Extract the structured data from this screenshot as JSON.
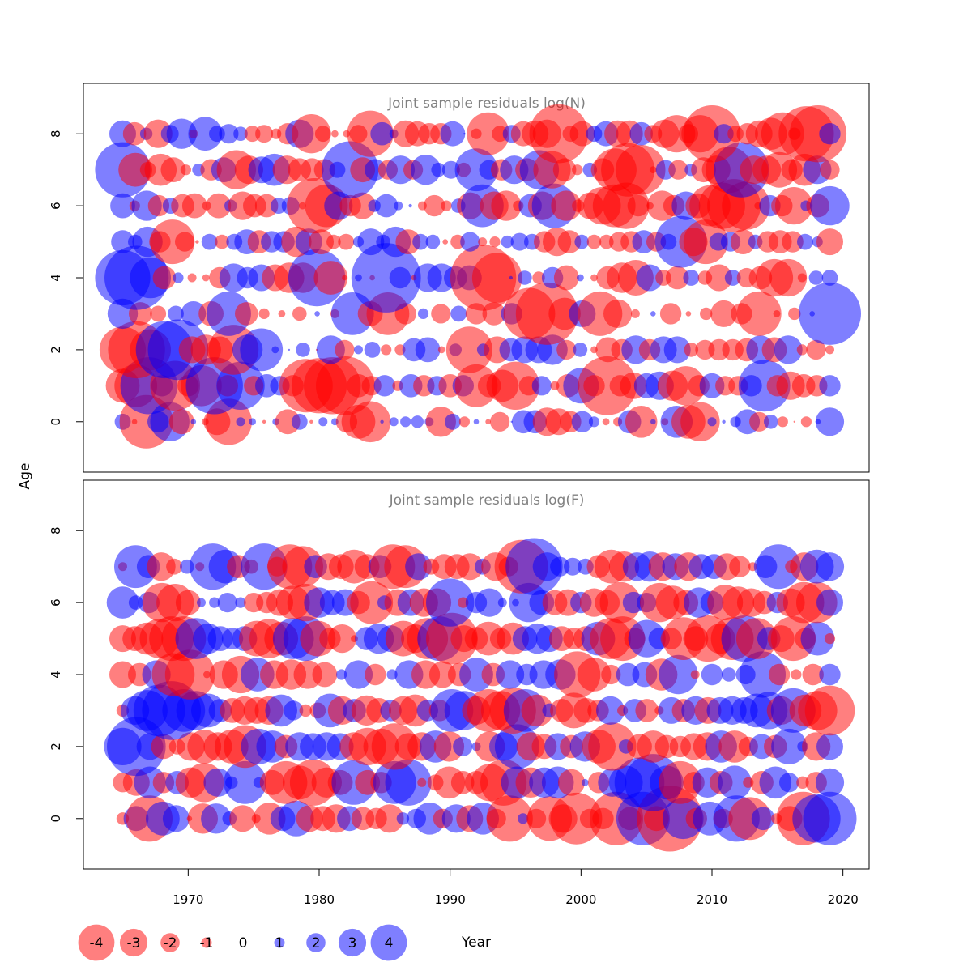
{
  "figure": {
    "xlabel": "Year",
    "ylabel": "Age",
    "legend": {
      "values": [
        "-4",
        "-3",
        "-2",
        "-1",
        "0",
        "1",
        "2",
        "3",
        "4"
      ],
      "placement": "bottom-left"
    },
    "colors": {
      "negative": "#ff0000",
      "positive": "#0000ff",
      "panel_title": "#808080"
    }
  },
  "chart_data": [
    {
      "type": "scatter",
      "title": "Joint sample residuals log(N)",
      "xlim": [
        1962,
        2022
      ],
      "ylim": [
        -1.4,
        9.4
      ],
      "x_ticks": [
        "1970",
        "1980",
        "1990",
        "2000",
        "2010",
        "2020"
      ],
      "y_ticks": [
        "0",
        "2",
        "4",
        "6",
        "8"
      ],
      "years": [
        1965,
        2019
      ],
      "ages": [
        0,
        1,
        2,
        3,
        4,
        5,
        6,
        7,
        8
      ],
      "residuals": {
        "0": [
          0.9,
          -0.3,
          -3.0,
          1.2,
          2.2,
          -1.4,
          0.3,
          -0.4,
          -1.5,
          -2.6,
          0.5,
          0.4,
          -0.2,
          0.4,
          -1.4,
          0.9,
          -0.2,
          0.5,
          0.4,
          -1.2,
          -1.9,
          -2.3,
          0.2,
          0.5,
          0.6,
          0.7,
          0.5,
          -1.7,
          0.9,
          -0.6,
          0.3,
          -0.3,
          -1.1,
          0.1,
          1.3,
          1.3,
          -1.6,
          -1.5,
          -1.2,
          1.2,
          0.6,
          -0.4,
          -0.5,
          1.3,
          -1.8,
          0.3,
          -0.4,
          1.8,
          -1.9,
          -2.2,
          0.5,
          0.2,
          0.6,
          1.4,
          -1.1,
          0.8,
          -0.6,
          -0.1,
          -0.6,
          0.3,
          1.6
        ],
        "1": [
          -1.9,
          -2.4,
          3.2,
          1.2,
          -2.8,
          -1.2,
          -2.3,
          3.2,
          -1.2,
          2.7,
          -1.1,
          1.3,
          1.1,
          -1.2,
          -3.0,
          -3.1,
          -3.2,
          -3.3,
          -1.3,
          -1.1,
          1.2,
          -0.6,
          1.3,
          -1.2,
          1.1,
          -1.3,
          1.2,
          -2.4,
          -1.3,
          -1.8,
          -2.7,
          -1.1,
          1.1,
          -0.5,
          -1.3,
          2.0,
          -1.2,
          -3.3,
          -1.2,
          -1.5,
          1.4,
          1.6,
          -1.7,
          -2.2,
          -1.2,
          1.4,
          -1.1,
          -1.1,
          1.2,
          2.9,
          -1.2,
          -1.6,
          -1.3,
          -1.2,
          1.2
        ],
        "2": [
          -2.6,
          -3.2,
          -2.3,
          3.2,
          3.4,
          -1.5,
          -1.7,
          -1.5,
          -2.8,
          1.7,
          2.4,
          0.4,
          0.1,
          0.8,
          -0.1,
          1.6,
          -1.1,
          0.5,
          0.9,
          -0.6,
          -0.6,
          1.3,
          1.4,
          -0.4,
          0.7,
          -2.6,
          0.7,
          -1.5,
          1.3,
          1.5,
          1.5,
          1.7,
          -1.1,
          0.8,
          -0.4,
          -1.4,
          -1.2,
          1.6,
          -1.2,
          1.5,
          1.5,
          -0.8,
          -1.1,
          -1.2,
          -1.2,
          -1.3,
          1.6,
          -1.4,
          1.6,
          -0.6,
          -1.1,
          -0.5
        ],
        "3": [
          1.7,
          -1.3,
          -0.9,
          0.9,
          1.4,
          -1.4,
          2.5,
          -1.3,
          -0.6,
          -0.4,
          -0.8,
          0.3,
          -0.5,
          2.4,
          -1.4,
          -2.4,
          -1.2,
          0.6,
          -1.1,
          0.9,
          -1.2,
          -1.3,
          1.2,
          -2.9,
          -3.5,
          -1.8,
          1.5,
          -2.5,
          -1.6,
          -0.5,
          0.3,
          -1.2,
          -0.3,
          -0.7,
          -1.5,
          -1.2,
          -2.5,
          -0.4,
          -0.7,
          0.3,
          3.5
        ],
        "4": [
          3.1,
          3.6,
          2.3,
          -1.3,
          0.6,
          -0.5,
          -0.4,
          -1.2,
          1.6,
          1.2,
          1.5,
          -1.5,
          -1.7,
          -1.7,
          3.2,
          -1.9,
          -0.3,
          0.4,
          -0.3,
          3.9,
          1.2,
          -0.3,
          1.6,
          1.6,
          1.3,
          1.4,
          -3.7,
          -2.8,
          0.2,
          0.8,
          -0.7,
          1.2,
          -1.4,
          0.4,
          -0.4,
          -1.3,
          -1.7,
          -2.0,
          1.5,
          -0.9,
          -1.3,
          0.9,
          -0.8,
          -1.5,
          0.9,
          -1.1,
          -1.3,
          -2.1,
          -2.1,
          -0.5,
          0.8,
          0.9
        ],
        "5": [
          1.3,
          0.8,
          1.7,
          -1.2,
          -2.5,
          -1.1,
          -0.2,
          0.9,
          -0.8,
          0.9,
          1.4,
          -1.3,
          1.2,
          1.2,
          -1.7,
          1.5,
          -1.4,
          -0.8,
          -0.9,
          0.6,
          1.5,
          0.8,
          1.7,
          -1.4,
          0.9,
          0.8,
          -0.3,
          -0.8,
          1.1,
          -0.5,
          -0.6,
          0.7,
          1.0,
          0.9,
          -1.2,
          -1.6,
          -1.3,
          0.8,
          -0.8,
          -0.8,
          -1.1,
          -1.2,
          1.3,
          -1.1,
          0.9,
          2.9,
          -1.6,
          -2.5,
          1.0,
          1.1,
          -1.4,
          0.8,
          -1.2,
          -1.3,
          -1.2,
          0.9,
          0.6,
          -1.5
        ],
        "6": [
          1.4,
          -0.6,
          1.7,
          -1.2,
          0.9,
          -1.3,
          -1.4,
          -0.5,
          -1.4,
          0.7,
          -1.6,
          -1.3,
          -1.3,
          0.9,
          1.0,
          -0.4,
          -3.1,
          -2.4,
          1.6,
          -1.2,
          -1.5,
          0.7,
          1.3,
          0.5,
          0.2,
          -0.5,
          -1.2,
          -0.6,
          0.8,
          -1.5,
          2.4,
          -1.6,
          -1.7,
          -0.6,
          1.3,
          -1.6,
          2.5,
          -1.7,
          -0.7,
          -1.5,
          -2.1,
          -2.4,
          -2.6,
          -1.2,
          -0.4,
          -1.7,
          -1.2,
          1.6,
          -1.4,
          -2.3,
          -2.6,
          -3.0,
          -2.7,
          -0.4,
          1.2,
          -1.2,
          -2.1,
          0.6,
          -1.3,
          2.2
        ],
        "7": [
          3.1,
          -1.9,
          -0.9,
          -1.8,
          -1.4,
          -0.6,
          0.7,
          -1.2,
          1.4,
          -2.2,
          -1.6,
          1.5,
          1.8,
          -1.6,
          -1.3,
          -1.3,
          -1.2,
          0.9,
          3.2,
          -1.4,
          1.2,
          -1.1,
          1.6,
          -1.1,
          1.7,
          0.8,
          1.0,
          -0.8,
          2.4,
          1.1,
          -1.2,
          1.6,
          -1.3,
          2.2,
          -2.1,
          -1.3,
          -0.6,
          0.8,
          -1.3,
          -2.4,
          -3.0,
          -2.8,
          -0.4,
          1.1,
          -1.1,
          0.7,
          -1.4,
          -1.6,
          -2.6,
          3.1,
          -1.6,
          -1.6,
          -2.0,
          -1.2,
          -1.8,
          1.6,
          -1.1
        ],
        "8": [
          1.5,
          -1.3,
          0.7,
          -1.6,
          1.0,
          1.7,
          -0.5,
          1.9,
          0.9,
          1.1,
          0.8,
          -0.9,
          -1.0,
          -0.6,
          -1.2,
          1.6,
          -2.2,
          -0.9,
          -0.4,
          -0.4,
          -1.0,
          -2.6,
          1.3,
          0.5,
          -1.5,
          -1.4,
          -1.2,
          -1.2,
          1.4,
          0.1,
          -0.6,
          -2.4,
          -0.9,
          1.0,
          -1.4,
          -1.5,
          -1.6,
          -3.3,
          -0.9,
          -1.4,
          0.9,
          1.4,
          -1.5,
          -1.5,
          1.3,
          -1.0,
          -1.6,
          -2.1,
          -1.1,
          -2.1,
          -3.2,
          1.1,
          -0.9,
          -1.2,
          -1.5,
          -1.8,
          -2.4,
          -0.7,
          -3.1,
          -3.2,
          1.2
        ]
      }
    },
    {
      "type": "scatter",
      "title": "Joint sample residuals log(F)",
      "xlim": [
        1962,
        2022
      ],
      "ylim": [
        -1.4,
        9.4
      ],
      "x_ticks": [
        "1970",
        "1980",
        "1990",
        "2000",
        "2010",
        "2020"
      ],
      "y_ticks": [
        "0",
        "2",
        "4",
        "6",
        "8"
      ],
      "years": [
        1965,
        2019
      ],
      "ages": [
        0,
        1,
        2,
        3,
        4,
        5,
        6,
        7
      ],
      "residuals": {
        "0": [
          -0.7,
          1.4,
          -2.6,
          1.9,
          1.5,
          -0.3,
          -1.7,
          1.7,
          0.8,
          -1.5,
          -0.5,
          -1.8,
          1.4,
          2.0,
          -1.5,
          -1.4,
          -1.6,
          1.4,
          -1.3,
          -1.2,
          -1.6,
          0.7,
          1.1,
          1.8,
          -1.1,
          1.6,
          -1.5,
          1.8,
          -1.1,
          -2.6,
          0.6,
          -1.1,
          -2.5,
          -1.6,
          -2.9,
          -1.1,
          -1.2,
          -3.0,
          -1.3,
          3.0,
          -1.4,
          -3.7,
          2.3,
          -1.2,
          1.9,
          -1.1,
          2.6,
          -2.4,
          1.3,
          -0.6,
          -1.4,
          -3.0,
          2.7,
          3.0
        ],
        "1": [
          -1.1,
          -1.5,
          1.8,
          -1.2,
          1.3,
          -1.7,
          -2.2,
          1.6,
          0.7,
          2.4,
          0.6,
          -1.4,
          -2.4,
          -1.9,
          -2.6,
          -1.7,
          -1.4,
          2.5,
          -1.4,
          -1.2,
          2.4,
          2.6,
          -0.5,
          -0.9,
          -1.8,
          -1.3,
          -1.3,
          -2.1,
          -2.6,
          1.8,
          -1.7,
          1.7,
          1.8,
          -1.5,
          0.4,
          -1.2,
          1.6,
          1.9,
          2.8,
          3.2,
          1.9,
          -2.4,
          -1.2,
          1.7,
          -1.3,
          1.9,
          -0.6,
          -1.3,
          1.8,
          1.1,
          -0.7,
          -1.2,
          1.6
        ],
        "2": [
          2.1,
          3.3,
          1.5,
          -1.4,
          -0.9,
          -1.6,
          -1.9,
          -1.6,
          -1.9,
          -2.4,
          2.0,
          1.8,
          -1.3,
          1.6,
          1.5,
          1.6,
          1.5,
          -1.6,
          -2.1,
          -2.0,
          -2.6,
          -1.5,
          -1.6,
          1.8,
          -1.7,
          1.1,
          0.5,
          -1.7,
          1.6,
          2.5,
          -1.6,
          -1.4,
          1.5,
          -1.3,
          1.7,
          -1.9,
          -2.7,
          0.8,
          -1.4,
          -1.8,
          -1.3,
          -1.2,
          -1.5,
          -1.6,
          1.8,
          -1.8,
          -1.1,
          1.4,
          -1.3,
          2.0,
          0.6,
          -1.6,
          1.5
        ],
        "3": [
          -0.7,
          1.6,
          2.3,
          2.9,
          3.3,
          2.4,
          2.2,
          1.9,
          1.3,
          -1.4,
          -1.6,
          -1.5,
          -1.6,
          1.8,
          1.1,
          -0.7,
          -0.9,
          1.9,
          -1.6,
          1.3,
          -1.7,
          -1.4,
          1.2,
          -1.6,
          -1.8,
          1.2,
          -1.2,
          2.4,
          2.2,
          -1.6,
          -2.4,
          -2.2,
          -2.6,
          2.4,
          -1.8,
          0.8,
          -1.3,
          -2.0,
          -1.4,
          -1.2,
          1.6,
          -0.6,
          1.3,
          -1.3,
          -0.5,
          1.5,
          -1.3,
          1.6,
          -1.5,
          1.5,
          1.6,
          1.5,
          1.9,
          2.1,
          -1.6,
          2.5,
          -1.8,
          -2.2,
          -2.8
        ],
        "4": [
          -1.5,
          -1.3,
          1.6,
          -2.4,
          -2.8,
          -0.4,
          -1.6,
          -2.1,
          1.9,
          -1.6,
          -1.7,
          -1.6,
          -1.4,
          0.6,
          1.6,
          -1.2,
          0.6,
          1.6,
          -1.6,
          -1.5,
          -1.3,
          1.9,
          -1.3,
          1.6,
          1.2,
          1.6,
          1.7,
          -2.6,
          -1.9,
          -1.1,
          1.3,
          1.4,
          -1.8,
          2.2,
          -0.5,
          1.2,
          0.8,
          1.1,
          2.6,
          -1.2,
          -0.6,
          -1.2,
          1.2
        ],
        "5": [
          -1.5,
          -1.4,
          -1.8,
          -2.2,
          -2.5,
          -2.5,
          2.3,
          1.7,
          1.4,
          1.2,
          1.4,
          -2.0,
          -2.2,
          -1.9,
          2.3,
          2.5,
          -2.0,
          -1.2,
          -1.6,
          -0.4,
          1.3,
          1.7,
          1.5,
          -2.0,
          -1.6,
          -2.3,
          2.5,
          -2.9,
          -1.5,
          -1.3,
          -1.9,
          -1.2,
          -1.8,
          1.4,
          1.7,
          1.5,
          -1.4,
          -1.2,
          -1.4,
          1.9,
          -2.3,
          -2.5,
          -1.2,
          2.1,
          1.2,
          -1.2,
          -2.4,
          -1.4,
          -2.6,
          -1.7,
          -2.4,
          2.6,
          -2.3,
          1.3,
          -1.5,
          -2.5,
          -1.2,
          1.9,
          -0.6
        ],
        "6": [
          1.8,
          0.8,
          1.2,
          -2.2,
          -2.1,
          -1.4,
          0.5,
          0.6,
          1.1,
          0.6,
          -1.1,
          -1.2,
          -1.5,
          -1.9,
          -2.1,
          1.7,
          1.4,
          1.5,
          -1.3,
          -2.4,
          0.8,
          -1.5,
          1.5,
          -1.6,
          -1.6,
          2.7,
          -0.6,
          1.2,
          1.6,
          0.5,
          0.4,
          2.2,
          1.4,
          -1.4,
          -1.5,
          1.2,
          -1.6,
          -1.4,
          -2.3,
          1.2,
          1.1,
          -2.2,
          -1.9,
          -1.4,
          1.7,
          1.3,
          -2.0,
          -1.8,
          -1.6,
          -1.3,
          1.2,
          -1.6,
          -2.3,
          -2.3,
          1.5
        ],
        "7": [
          -0.5,
          2.4,
          1.3,
          -1.6,
          -0.9,
          0.8,
          -0.5,
          2.6,
          1.9,
          -1.3,
          -0.8,
          2.6,
          -1.1,
          -2.5,
          -2.3,
          1.3,
          -1.5,
          -1.4,
          -1.9,
          -1.4,
          1.3,
          -2.5,
          -2.4,
          1.5,
          -0.9,
          -1.4,
          -1.4,
          -1.5,
          0.9,
          -1.6,
          -1.1,
          -3.0,
          3.2,
          1.6,
          1.1,
          1.0,
          0.9,
          -1.3,
          -1.9,
          -1.7,
          1.6,
          1.7,
          -1.6,
          1.5,
          -1.6,
          1.4,
          1.4,
          -1.5,
          -1.2,
          -0.5,
          1.3,
          2.5,
          -0.7,
          -1.6,
          1.9,
          1.6
        ]
      }
    }
  ]
}
